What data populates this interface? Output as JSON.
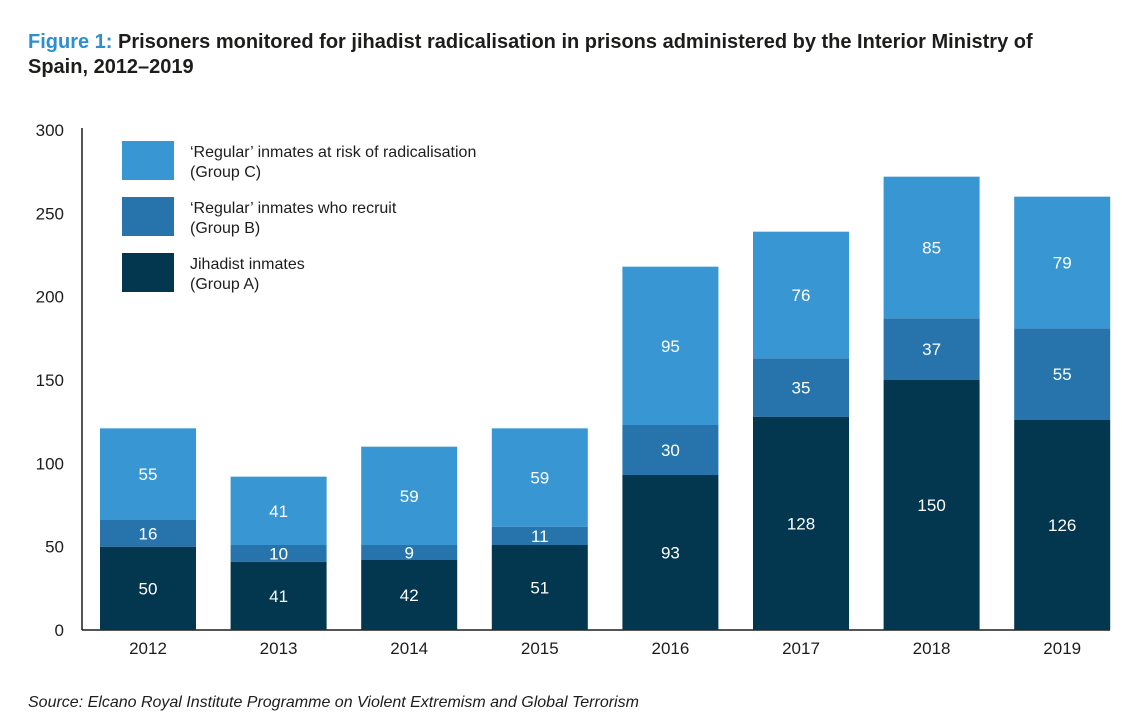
{
  "title": {
    "prefix": "Figure 1:",
    "text": "Prisoners monitored for jihadist radicalisation in prisons administered by the Interior Ministry of Spain, 2012–2019"
  },
  "source": "Source: Elcano Royal Institute Programme on Violent Extremism and Global Terrorism",
  "colors": {
    "group_a": "#03364f",
    "group_b": "#2674ab",
    "group_c": "#3896d2",
    "title_accent": "#2d8fcf"
  },
  "chart_data": {
    "type": "bar",
    "stacked": true,
    "categories": [
      "2012",
      "2013",
      "2014",
      "2015",
      "2016",
      "2017",
      "2018",
      "2019"
    ],
    "series": [
      {
        "name": "Jihadist inmates",
        "name_line2": "(Group A)",
        "values": [
          50,
          41,
          42,
          51,
          93,
          128,
          150,
          126
        ]
      },
      {
        "name": "‘Regular’ inmates who recruit",
        "name_line2": "(Group B)",
        "values": [
          16,
          10,
          9,
          11,
          30,
          35,
          37,
          55
        ]
      },
      {
        "name": "‘Regular’ inmates at risk of radicalisation",
        "name_line2": "(Group C)",
        "values": [
          55,
          41,
          59,
          59,
          95,
          76,
          85,
          79
        ]
      }
    ],
    "yticks": [
      "0",
      "50",
      "100",
      "150",
      "200",
      "250",
      "300"
    ],
    "ylim": [
      0,
      300
    ],
    "grid": false,
    "legend": "top-left"
  }
}
